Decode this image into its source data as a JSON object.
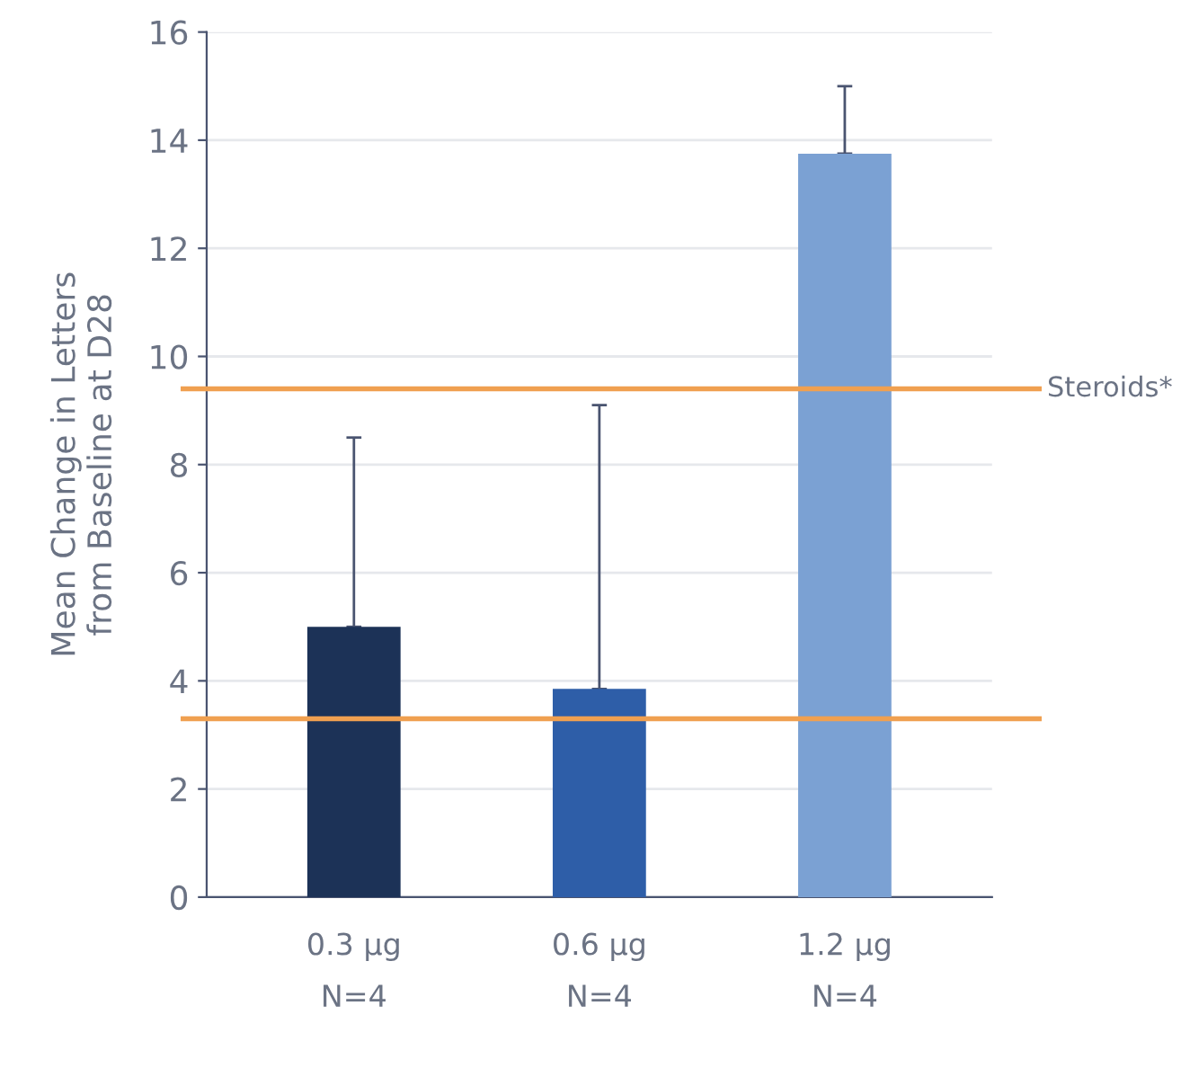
{
  "chart_data": {
    "type": "bar",
    "ylabel": "Mean Change in Letters\nfrom Baseline at D28",
    "categories": [
      "0.3 µg\nN=4",
      "0.6 µg\nN=4",
      "1.2 µg\nN=4"
    ],
    "values": [
      5.0,
      3.85,
      13.75
    ],
    "colors": [
      "#1c3257",
      "#2e5ea8",
      "#7ba1d3"
    ],
    "errors": [
      [
        5.0,
        8.5
      ],
      [
        3.85,
        9.1
      ],
      [
        13.75,
        15.0
      ]
    ],
    "ylim": [
      0,
      16
    ],
    "yticks": [
      0,
      2,
      4,
      6,
      8,
      10,
      12,
      14,
      16
    ],
    "grid": "y",
    "ref_lines": [
      {
        "axis": "y",
        "value": 9.4,
        "label": "Steroids*",
        "color": "#f0a050"
      },
      {
        "axis": "y",
        "value": 3.3,
        "color": "#f0a050"
      }
    ]
  }
}
